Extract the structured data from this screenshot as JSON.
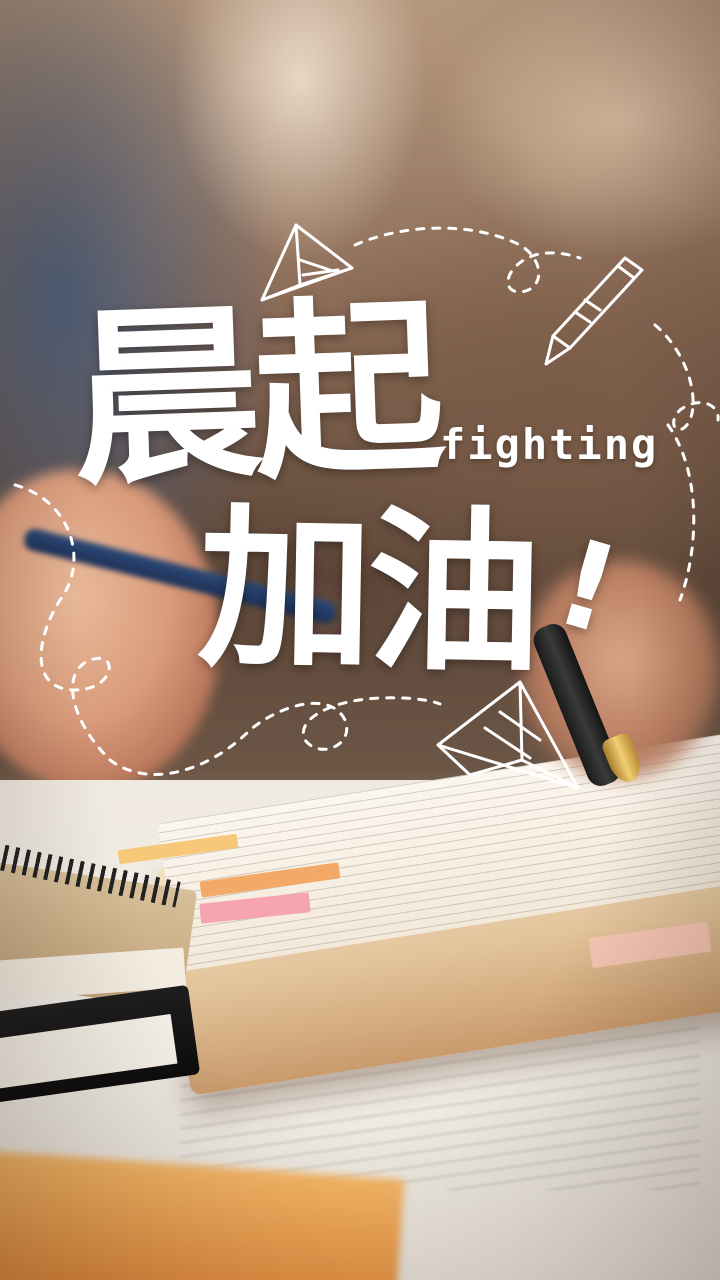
{
  "headline": {
    "line1": "晨起",
    "line2": "加油",
    "exclaim": "!",
    "subtitle": "fighting"
  },
  "colors": {
    "headline_text": "#ffffff",
    "doodle_stroke": "#ffffff"
  },
  "icons": {
    "top_doodle": "paper-plane-icon",
    "right_doodle": "pencil-icon",
    "bottom_doodle": "paper-plane-icon"
  }
}
